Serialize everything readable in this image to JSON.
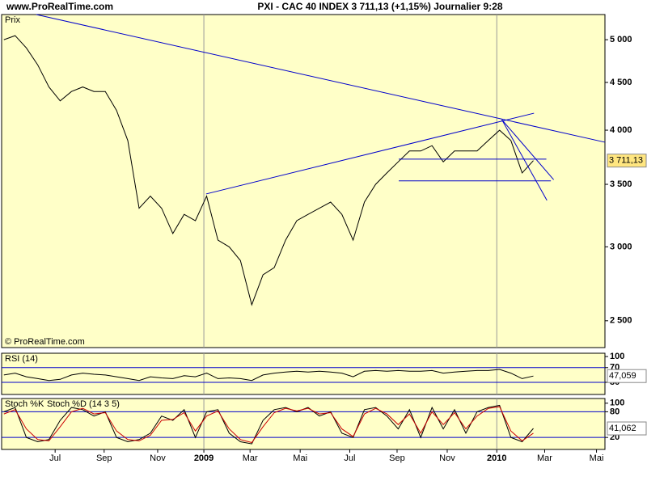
{
  "chart_data": [
    {
      "type": "line",
      "title": "PXI - CAC 40 INDEX   3 711,13 (+1,15%)   Journalier  9:28",
      "site": "www.ProRealTime.com",
      "panel_label": "Prix",
      "watermark": "© ProRealTime.com",
      "log_scale": true,
      "color": "#000000",
      "x": [
        0,
        2,
        4,
        6,
        8,
        10,
        12,
        14,
        16,
        18,
        20,
        22,
        24,
        26,
        28,
        30,
        32,
        34,
        36,
        38,
        40,
        42,
        44,
        46,
        48,
        50,
        52,
        54,
        56,
        58,
        60,
        62,
        64,
        66,
        68,
        70,
        72,
        74,
        76,
        78,
        80,
        82,
        84,
        86,
        88,
        90,
        92,
        94
      ],
      "values": [
        5000,
        5050,
        4900,
        4700,
        4450,
        4300,
        4400,
        4450,
        4400,
        4400,
        4200,
        3900,
        3300,
        3400,
        3300,
        3100,
        3250,
        3200,
        3400,
        3050,
        3000,
        2900,
        2600,
        2800,
        2850,
        3050,
        3200,
        3250,
        3300,
        3350,
        3250,
        3050,
        3350,
        3500,
        3600,
        3700,
        3800,
        3800,
        3850,
        3700,
        3800,
        3800,
        3800,
        3900,
        4000,
        3900,
        3600,
        3711.13
      ],
      "current_value": 3711.13,
      "current_label": "3 711,13",
      "ylim": [
        2340,
        5320
      ],
      "yticks": [
        {
          "value": 2500,
          "label": "2 500"
        },
        {
          "value": 3000,
          "label": "3 000"
        },
        {
          "value": 3500,
          "label": "3 500"
        },
        {
          "value": 4000,
          "label": "4 000"
        },
        {
          "value": 4500,
          "label": "4 500"
        },
        {
          "value": 5000,
          "label": "5 000"
        }
      ],
      "xlim": [
        -0.4,
        106.7
      ],
      "xticks": [
        {
          "value": 9.1,
          "label": "Jul"
        },
        {
          "value": 17.8,
          "label": "Sep"
        },
        {
          "value": 27.3,
          "label": "Nov"
        },
        {
          "value": 35.5,
          "label": "2009"
        },
        {
          "value": 43.7,
          "label": "Mar"
        },
        {
          "value": 52.6,
          "label": "Mai"
        },
        {
          "value": 61.4,
          "label": "Jul"
        },
        {
          "value": 69.8,
          "label": "Sep"
        },
        {
          "value": 78.7,
          "label": "Nov"
        },
        {
          "value": 87.5,
          "label": "2010"
        },
        {
          "value": 96.0,
          "label": "Mar"
        },
        {
          "value": 105.2,
          "label": "Mai"
        }
      ],
      "trendline_color": "#0000cc",
      "trendlines": [
        {
          "x": [
            5.75,
            106.7
          ],
          "y": [
            5320,
            3883
          ]
        },
        {
          "x": [
            35.9,
            94.1
          ],
          "y": [
            3418,
            4171
          ]
        },
        {
          "x": [
            70.1,
            96.3
          ],
          "y": [
            3724,
            3724
          ]
        },
        {
          "x": [
            70.1,
            97.1
          ],
          "y": [
            3530,
            3530
          ]
        },
        {
          "x": [
            88.4,
            97.6
          ],
          "y": [
            4105,
            3540
          ]
        },
        {
          "x": [
            88.4,
            96.4
          ],
          "y": [
            4105,
            3364
          ]
        }
      ]
    },
    {
      "type": "line",
      "title": "RSI (14)",
      "color": "#000000",
      "guide_color": "#0000cc",
      "x": [
        0,
        2,
        4,
        6,
        8,
        10,
        12,
        14,
        16,
        18,
        20,
        22,
        24,
        26,
        28,
        30,
        32,
        34,
        36,
        38,
        40,
        42,
        44,
        46,
        48,
        50,
        52,
        54,
        56,
        58,
        60,
        62,
        64,
        66,
        68,
        70,
        72,
        74,
        76,
        78,
        80,
        82,
        84,
        86,
        88,
        90,
        92,
        94
      ],
      "values": [
        50,
        55,
        45,
        40,
        35,
        38,
        50,
        55,
        52,
        50,
        45,
        40,
        35,
        45,
        42,
        40,
        48,
        45,
        55,
        40,
        42,
        40,
        35,
        50,
        55,
        58,
        60,
        58,
        60,
        58,
        55,
        45,
        60,
        62,
        60,
        62,
        60,
        60,
        62,
        55,
        58,
        60,
        62,
        62,
        65,
        55,
        40,
        47.059
      ],
      "current_value": 47.059,
      "current_label": "47,059",
      "ylim": [
        -3,
        109
      ],
      "yticks": [
        30,
        70,
        100
      ],
      "guides": [
        30,
        70
      ]
    },
    {
      "type": "line",
      "title": "Stoch %K",
      "xlim": [
        -0.4,
        106.7
      ],
      "guide_color": "#0000cc",
      "x": [
        0,
        2,
        4,
        6,
        8,
        10,
        12,
        14,
        16,
        18,
        20,
        22,
        24,
        26,
        28,
        30,
        32,
        34,
        36,
        38,
        40,
        42,
        44,
        46,
        48,
        50,
        52,
        54,
        56,
        58,
        60,
        62,
        64,
        66,
        68,
        70,
        72,
        74,
        76,
        78,
        80,
        82,
        84,
        86,
        88,
        90,
        92,
        94
      ],
      "series": [
        {
          "name": "Stoch %K",
          "color": "#000000",
          "values": [
            80,
            90,
            20,
            10,
            15,
            60,
            90,
            85,
            70,
            80,
            20,
            10,
            15,
            30,
            70,
            60,
            85,
            20,
            80,
            85,
            30,
            10,
            5,
            60,
            85,
            90,
            80,
            90,
            70,
            80,
            30,
            20,
            85,
            90,
            70,
            40,
            85,
            20,
            90,
            40,
            85,
            30,
            80,
            90,
            95,
            20,
            10,
            41.062
          ]
        },
        {
          "name": "Stoch %D (14 3 5)",
          "color": "#cc0000",
          "values": [
            75,
            85,
            40,
            15,
            12,
            45,
            80,
            88,
            75,
            78,
            35,
            15,
            12,
            25,
            60,
            62,
            78,
            35,
            70,
            82,
            40,
            15,
            8,
            45,
            78,
            88,
            82,
            88,
            75,
            78,
            40,
            22,
            75,
            88,
            75,
            50,
            75,
            30,
            80,
            50,
            78,
            40,
            70,
            88,
            92,
            35,
            12,
            30
          ]
        }
      ],
      "current_value": 41.062,
      "current_label": "41,062",
      "ylim": [
        -8,
        111
      ],
      "yticks": [
        20,
        80,
        100
      ],
      "guides": [
        20,
        80
      ]
    }
  ]
}
